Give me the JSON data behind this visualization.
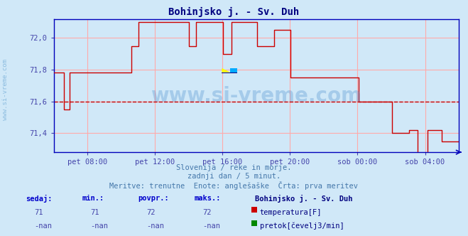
{
  "title": "Bohinjsko j. - Sv. Duh",
  "title_color": "#000080",
  "bg_color": "#d0e8f8",
  "plot_bg_color": "#d0e8f8",
  "line_color": "#cc0000",
  "avg_line_color": "#cc0000",
  "avg_value": 71.6,
  "ylim": [
    71.28,
    72.12
  ],
  "ytick_vals": [
    71.4,
    71.6,
    71.8,
    72.0
  ],
  "ytick_labels": [
    "71,4",
    "71,6",
    "71,8",
    "72,0"
  ],
  "grid_color": "#ffaaaa",
  "tick_color": "#4444aa",
  "watermark": "www.si-vreme.com",
  "watermark_color": "#4488cc",
  "watermark_alpha": 0.3,
  "subtitle1": "Slovenija / reke in morje.",
  "subtitle2": "zadnji dan / 5 minut.",
  "subtitle3": "Meritve: trenutne  Enote: anglešaške  Črta: prva meritev",
  "subtitle_color": "#4477aa",
  "legend_title": "Bohinjsko j. - Sv. Duh",
  "legend_items": [
    {
      "label": "temperatura[F]",
      "color": "#cc0000"
    },
    {
      "label": "pretok[čevelj3/min]",
      "color": "#008800"
    }
  ],
  "stats_headers": [
    "sedaj:",
    "min.:",
    "povpr.:",
    "maks.:"
  ],
  "stats_temp": [
    "71",
    "71",
    "72",
    "72"
  ],
  "stats_flow": [
    "-nan",
    "-nan",
    "-nan",
    "-nan"
  ],
  "xtick_labels": [
    "pet 08:00",
    "pet 12:00",
    "pet 16:00",
    "pet 20:00",
    "sob 00:00",
    "sob 04:00"
  ],
  "xtick_positions": [
    0.083,
    0.25,
    0.417,
    0.583,
    0.75,
    0.917
  ],
  "axis_line_color": "#0000bb",
  "bottom_line_color": "#0000bb"
}
